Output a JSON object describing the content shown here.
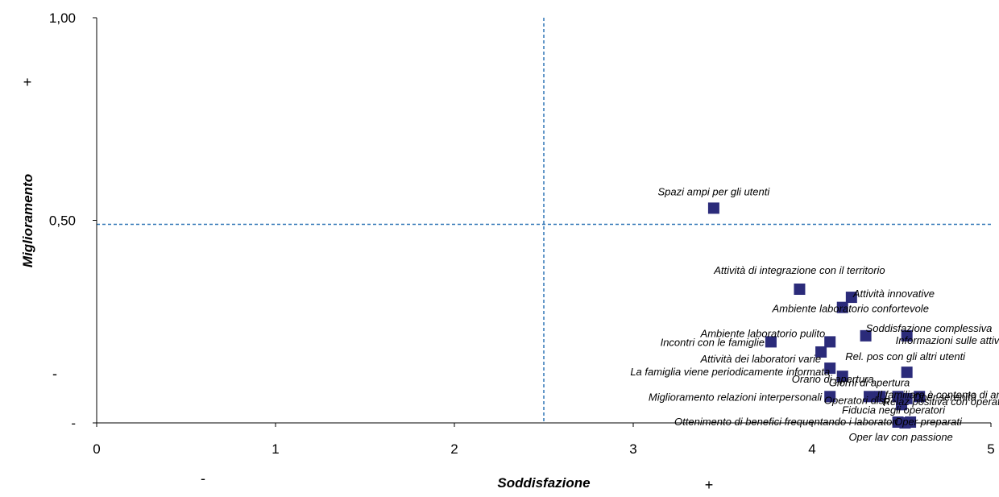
{
  "chart_data": {
    "type": "scatter",
    "title": "",
    "xlabel": "Soddisfazione",
    "ylabel": "Miglioramento",
    "xlim": [
      0,
      5
    ],
    "ylim": [
      0,
      1
    ],
    "x_ticks": [
      {
        "value": 0,
        "label": "0"
      },
      {
        "value": 1,
        "label": "1"
      },
      {
        "value": 2,
        "label": "2"
      },
      {
        "value": 3,
        "label": "3"
      },
      {
        "value": 4,
        "label": "4"
      },
      {
        "value": 5,
        "label": "5"
      }
    ],
    "y_ticks": [
      {
        "value": 0,
        "label": "-"
      },
      {
        "value": 0.5,
        "label": "0,50"
      },
      {
        "value": 1,
        "label": "1,00"
      }
    ],
    "reference_lines": {
      "x": 2.5,
      "y": 0.49
    },
    "grid": false,
    "legend": "none",
    "marker": "square",
    "colors": {
      "marker": "#2b2b7a",
      "reference_line": "#2e75b6",
      "axis": "#000000"
    },
    "sign_marks": {
      "x_minus": "-",
      "x_plus": "+",
      "y_minus": "-",
      "y_plus": "+"
    },
    "points": [
      {
        "label": "Spazi ampi per gli utenti",
        "x": 3.45,
        "y": 0.53
      },
      {
        "label": "Attività di integrazione con il territorio",
        "x": 3.93,
        "y": 0.33
      },
      {
        "label": "Attività innovative",
        "x": 4.22,
        "y": 0.31
      },
      {
        "label": "Ambiente laboratorio confortevole",
        "x": 4.17,
        "y": 0.285
      },
      {
        "label": "Soddisfazione complessiva",
        "x": 4.3,
        "y": 0.215
      },
      {
        "label": "Ambiente laboratorio pulito",
        "x": 4.1,
        "y": 0.2
      },
      {
        "label": "Informazioni sulle attività",
        "x": 4.53,
        "y": 0.215
      },
      {
        "label": "Incontri con le famiglie",
        "x": 3.77,
        "y": 0.2
      },
      {
        "label": "Attività dei laboratori varie",
        "x": 4.05,
        "y": 0.175
      },
      {
        "label": "Rel. pos con gli altri utenti",
        "x": 4.53,
        "y": 0.125
      },
      {
        "label": "La famiglia viene periodicamente informata",
        "x": 4.1,
        "y": 0.135
      },
      {
        "label": "Orario di apertura",
        "x": 4.17,
        "y": 0.115
      },
      {
        "label": "Giorni di apertura",
        "x": 4.32,
        "y": 0.065
      },
      {
        "label": "Il familiare è contento di andare ai laboratori",
        "x": 4.38,
        "y": 0.065
      },
      {
        "label": "Miglioramento relazioni interpersonali",
        "x": 4.1,
        "y": 0.065
      },
      {
        "label": "Oper serenità",
        "x": 4.6,
        "y": 0.065
      },
      {
        "label": "Operatori disp",
        "x": 4.48,
        "y": 0.065
      },
      {
        "label": "Relaz positiva con operatori",
        "x": 4.53,
        "y": 0.06
      },
      {
        "label": "Fiducia negli operatori",
        "x": 4.5,
        "y": 0.045
      },
      {
        "label": "Ottenimento di benefici frequentando i laboratori",
        "x": 4.48,
        "y": 0.002
      },
      {
        "label": "Oper preparati",
        "x": 4.55,
        "y": 0.002
      },
      {
        "label": "Oper lav con passione",
        "x": 4.52,
        "y": 0.0
      }
    ]
  }
}
